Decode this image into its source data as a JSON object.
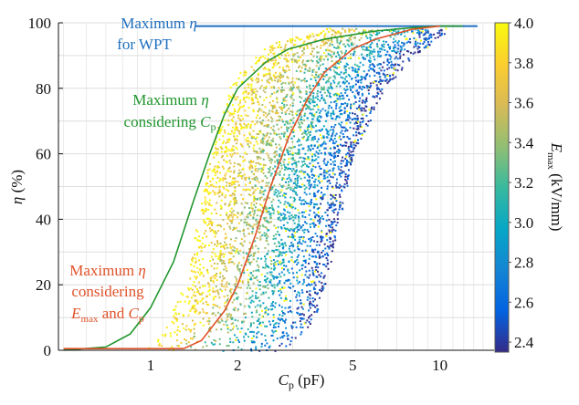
{
  "chart_data": {
    "type": "scatter",
    "title": "",
    "xlabel": {
      "main": "C",
      "sub": "p",
      "unit": " (pF)"
    },
    "ylabel": {
      "main": "η",
      "unit": " (%)"
    },
    "xscale": "log",
    "xlim": [
      0.48,
      15.4
    ],
    "ylim": [
      0,
      100
    ],
    "xticks": [
      {
        "v": 1,
        "label": "1"
      },
      {
        "v": 2,
        "label": "2"
      },
      {
        "v": 5,
        "label": "5"
      },
      {
        "v": 10,
        "label": "10"
      }
    ],
    "yticks": [
      {
        "v": 0,
        "label": "0"
      },
      {
        "v": 20,
        "label": "20"
      },
      {
        "v": 40,
        "label": "40"
      },
      {
        "v": 60,
        "label": "60"
      },
      {
        "v": 80,
        "label": "80"
      },
      {
        "v": 100,
        "label": "100"
      }
    ],
    "grid": true,
    "colorbar": {
      "label_main": "E",
      "label_sub": "max",
      "label_unit": " (kV/mm)",
      "range": [
        2.35,
        4.0
      ],
      "ticks": [
        "2.4",
        "2.6",
        "2.8",
        "3.0",
        "3.2",
        "3.4",
        "3.6",
        "3.8",
        "4.0"
      ],
      "colors": [
        "#352a87",
        "#0363e1",
        "#1485d4",
        "#06a7c6",
        "#38b99e",
        "#92bf73",
        "#d9ba56",
        "#fcce2e",
        "#f9fb0e"
      ]
    },
    "scatter_cloud": {
      "description_eta": [
        0,
        10,
        20,
        40,
        60,
        80,
        90,
        95,
        98
      ],
      "cp_min_high_E": [
        0.95,
        1.15,
        1.3,
        1.45,
        1.6,
        1.85,
        2.2,
        2.8,
        3.8
      ],
      "cp_max_low_E": [
        2.9,
        3.7,
        4.0,
        4.5,
        5.0,
        6.4,
        8.0,
        10.0,
        10.5
      ]
    },
    "series": [
      {
        "name": "Maximum η for WPT",
        "color": "#1f6fbf",
        "x": [
          1.43,
          13.5
        ],
        "y": [
          99,
          99
        ]
      },
      {
        "name": "Maximum η considering Cp",
        "color": "#22962e",
        "x": [
          0.5,
          0.7,
          0.85,
          1.0,
          1.2,
          1.4,
          1.6,
          1.8,
          2.0,
          2.5,
          3.0,
          4.0,
          6.0,
          8.0,
          10.0,
          12.0
        ],
        "y": [
          0,
          1,
          5,
          13,
          27,
          45,
          60,
          72,
          80,
          88,
          92,
          95,
          97.5,
          98.5,
          99,
          99
        ]
      },
      {
        "name": "Maximum η considering Emax and Cp",
        "color": "#e0522a",
        "x": [
          0.5,
          1.3,
          1.5,
          1.8,
          2.0,
          2.3,
          2.6,
          3.0,
          3.5,
          4.0,
          5.0,
          6.0,
          8.0,
          10.0
        ],
        "y": [
          0.5,
          0.5,
          3,
          12,
          20,
          35,
          50,
          65,
          77,
          85,
          92,
          95,
          98,
          99
        ]
      }
    ],
    "annotations": [
      {
        "lines": [
          "Maximum η",
          "for WPT"
        ],
        "color": "#1f6fbf"
      },
      {
        "lines": [
          "Maximum η",
          "considering Cp"
        ],
        "color": "#22962e"
      },
      {
        "lines": [
          "Maximum η",
          "considering",
          "Emax and Cp"
        ],
        "color": "#e0522a"
      }
    ]
  }
}
